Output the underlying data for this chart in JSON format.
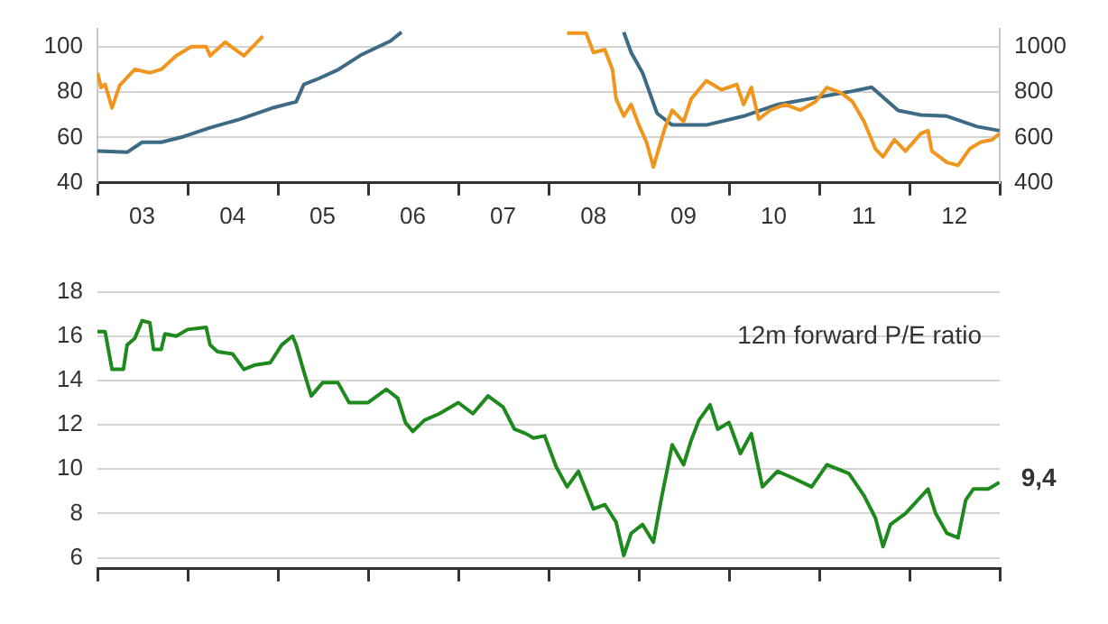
{
  "chart_data": [
    {
      "type": "line",
      "xlim": [
        "2003",
        "2013"
      ],
      "ylim": [
        40,
        108
      ],
      "y2lim": [
        400,
        1080
      ],
      "xticks": [
        {
          "value": "2003",
          "label": null
        },
        {
          "value": "2003-07",
          "label": "03"
        },
        {
          "value": "2004",
          "label": null
        },
        {
          "value": "2004-07",
          "label": "04"
        },
        {
          "value": "2005",
          "label": null
        },
        {
          "value": "2005-07",
          "label": "05"
        },
        {
          "value": "2006",
          "label": null
        },
        {
          "value": "2006-07",
          "label": "06"
        },
        {
          "value": "2007",
          "label": null
        },
        {
          "value": "2007-07",
          "label": "07"
        },
        {
          "value": "2008",
          "label": null
        },
        {
          "value": "2008-07",
          "label": "08"
        },
        {
          "value": "2009",
          "label": null
        },
        {
          "value": "2009-07",
          "label": "09"
        },
        {
          "value": "2010",
          "label": null
        },
        {
          "value": "2010-07",
          "label": "10"
        },
        {
          "value": "2011",
          "label": null
        },
        {
          "value": "2011-07",
          "label": "11"
        },
        {
          "value": "2012",
          "label": null
        },
        {
          "value": "2012-07",
          "label": "12"
        },
        {
          "value": "2013",
          "label": null
        }
      ],
      "yticks": [
        40,
        60,
        80,
        100
      ],
      "y2ticks": [
        400,
        600,
        800,
        1000
      ],
      "grid": "y",
      "series": [
        {
          "color": "#f0961e",
          "x": [
            "2003-01-01",
            "2003-01-16",
            "2003-02-01",
            "2003-03-01",
            "2003-04-01",
            "2003-06-01",
            "2003-08-01",
            "2003-09-16",
            "2003-11-16",
            "2004-01-16",
            "2004-03-16",
            "2004-04-01",
            "2004-06-01",
            "2004-08-16",
            "2004-11-01",
            "2004-12-16",
            "2008-03-16",
            "2008-06-01",
            "2008-07-01",
            "2008-08-16",
            "2008-09-16",
            "2008-10-01",
            "2008-11-01",
            "2008-12-01",
            "2009-01-01",
            "2009-02-01",
            "2009-03-01",
            "2009-04-16",
            "2009-05-16",
            "2009-07-01",
            "2009-08-01",
            "2009-10-01",
            "2009-12-01",
            "2010-02-01",
            "2010-03-01",
            "2010-04-01",
            "2010-05-01",
            "2010-06-16",
            "2010-08-16",
            "2010-10-16",
            "2010-12-16",
            "2011-02-01",
            "2011-04-01",
            "2011-05-16",
            "2011-07-01",
            "2011-08-16",
            "2011-09-16",
            "2011-11-01",
            "2011-12-16",
            "2012-02-16",
            "2012-03-16",
            "2012-04-01",
            "2012-06-01",
            "2012-07-16",
            "2012-09-01",
            "2012-10-16",
            "2012-12-01",
            "2012-12-31"
          ],
          "values": [
            88.5,
            82,
            83.4,
            73,
            83,
            90,
            88.5,
            90,
            96,
            100,
            100,
            96,
            102,
            96,
            104.6,
            null,
            106,
            106,
            97.4,
            98.7,
            90,
            77,
            69.4,
            74.5,
            65.5,
            58,
            47,
            64,
            72,
            67,
            77,
            85,
            81,
            83.4,
            74.5,
            82,
            68,
            72,
            74.5,
            72,
            75.7,
            82,
            79.6,
            75.7,
            67,
            55,
            51.5,
            59,
            54,
            61.7,
            63,
            54,
            49,
            47.7,
            55,
            58,
            59,
            61.7
          ]
        },
        {
          "color": "#3d6a85",
          "axis": "y2",
          "x": [
            "2003-01-01",
            "2003-05-01",
            "2003-07-01",
            "2003-09-16",
            "2003-12-16",
            "2004-04-01",
            "2004-08-01",
            "2004-12-16",
            "2005-03-16",
            "2005-04-16",
            "2005-06-16",
            "2005-09-01",
            "2005-12-01",
            "2006-04-01",
            "2006-05-16",
            "2006-06-16",
            "2008-11-01",
            "2008-12-01",
            "2009-01-16",
            "2009-03-16",
            "2009-05-16",
            "2009-10-01",
            "2010-03-01",
            "2010-07-16",
            "2010-12-16",
            "2011-05-01",
            "2011-08-01",
            "2011-11-16",
            "2012-02-16",
            "2012-06-01",
            "2012-10-01",
            "2012-12-31"
          ],
          "values": [
            540,
            535,
            579,
            579,
            604,
            643,
            681,
            732,
            757,
            834,
            860,
            898,
            962,
            1025,
            1064,
            null,
            1064,
            974,
            885,
            706,
            655,
            655,
            694,
            745,
            775,
            801,
            821,
            719,
            699,
            694,
            648,
            630
          ]
        }
      ]
    },
    {
      "type": "line",
      "xlim": [
        "2003",
        "2013"
      ],
      "ylim": [
        5.5,
        18
      ],
      "tick_labels": "y",
      "xticks": [
        {
          "value": "2003",
          "label": null
        },
        {
          "value": "2004",
          "label": null
        },
        {
          "value": "2005",
          "label": null
        },
        {
          "value": "2006",
          "label": null
        },
        {
          "value": "2007",
          "label": null
        },
        {
          "value": "2008",
          "label": null
        },
        {
          "value": "2009",
          "label": null
        },
        {
          "value": "2010",
          "label": null
        },
        {
          "value": "2011",
          "label": null
        },
        {
          "value": "2012",
          "label": null
        },
        {
          "value": "2013",
          "label": null
        }
      ],
      "yticks": [
        6,
        8,
        10,
        12,
        14,
        16,
        18
      ],
      "grid": "y",
      "annotations": [
        "12m forward P/E ratio",
        {
          "text": "9,4",
          "x": "2012-12-31",
          "y": 9.4
        }
      ],
      "series": [
        {
          "color": "#1e8a1e",
          "x": [
            "2003-01-01",
            "2003-02-01",
            "2003-03-01",
            "2003-04-16",
            "2003-05-01",
            "2003-06-01",
            "2003-07-01",
            "2003-08-01",
            "2003-08-16",
            "2003-09-16",
            "2003-10-01",
            "2003-11-16",
            "2004-01-01",
            "2004-03-16",
            "2004-04-01",
            "2004-05-01",
            "2004-07-01",
            "2004-08-16",
            "2004-10-01",
            "2004-12-01",
            "2005-01-16",
            "2005-03-01",
            "2005-03-16",
            "2005-04-16",
            "2005-05-16",
            "2005-07-01",
            "2005-09-01",
            "2005-10-16",
            "2006-01-01",
            "2006-03-16",
            "2006-05-01",
            "2006-06-01",
            "2006-07-01",
            "2006-08-16",
            "2006-10-16",
            "2007-01-01",
            "2007-03-01",
            "2007-05-01",
            "2007-07-01",
            "2007-08-16",
            "2007-10-01",
            "2007-11-01",
            "2007-12-16",
            "2008-02-01",
            "2008-03-16",
            "2008-05-01",
            "2008-07-01",
            "2008-08-16",
            "2008-10-01",
            "2008-11-01",
            "2008-12-01",
            "2009-01-16",
            "2009-03-01",
            "2009-04-01",
            "2009-05-16",
            "2009-07-01",
            "2009-08-01",
            "2009-09-01",
            "2009-10-16",
            "2009-11-16",
            "2010-01-01",
            "2010-02-16",
            "2010-04-01",
            "2010-05-16",
            "2010-07-16",
            "2010-09-16",
            "2010-12-01",
            "2011-02-01",
            "2011-05-01",
            "2011-07-01",
            "2011-08-16",
            "2011-09-16",
            "2011-10-16",
            "2011-12-16",
            "2012-03-16",
            "2012-04-16",
            "2012-06-01",
            "2012-07-16",
            "2012-08-16",
            "2012-09-16",
            "2012-11-16",
            "2012-12-31"
          ],
          "values": [
            16.2,
            16.2,
            14.5,
            14.5,
            15.6,
            15.9,
            16.7,
            16.6,
            15.4,
            15.4,
            16.1,
            16.0,
            16.3,
            16.4,
            15.6,
            15.3,
            15.2,
            14.5,
            14.7,
            14.8,
            15.6,
            16.0,
            15.6,
            14.4,
            13.3,
            13.9,
            13.9,
            13.0,
            13.0,
            13.6,
            13.2,
            12.1,
            11.7,
            12.2,
            12.5,
            13.0,
            12.5,
            13.3,
            12.8,
            11.8,
            11.6,
            11.4,
            11.5,
            10.1,
            9.2,
            9.9,
            8.2,
            8.4,
            7.6,
            6.1,
            7.1,
            7.5,
            6.7,
            8.6,
            11.1,
            10.2,
            11.3,
            12.2,
            12.9,
            11.8,
            12.1,
            10.7,
            11.6,
            9.2,
            9.9,
            9.6,
            9.2,
            10.2,
            9.8,
            8.8,
            7.8,
            6.5,
            7.5,
            8.0,
            9.1,
            8.0,
            7.1,
            6.9,
            8.6,
            9.1,
            9.1,
            9.4
          ]
        }
      ]
    }
  ]
}
